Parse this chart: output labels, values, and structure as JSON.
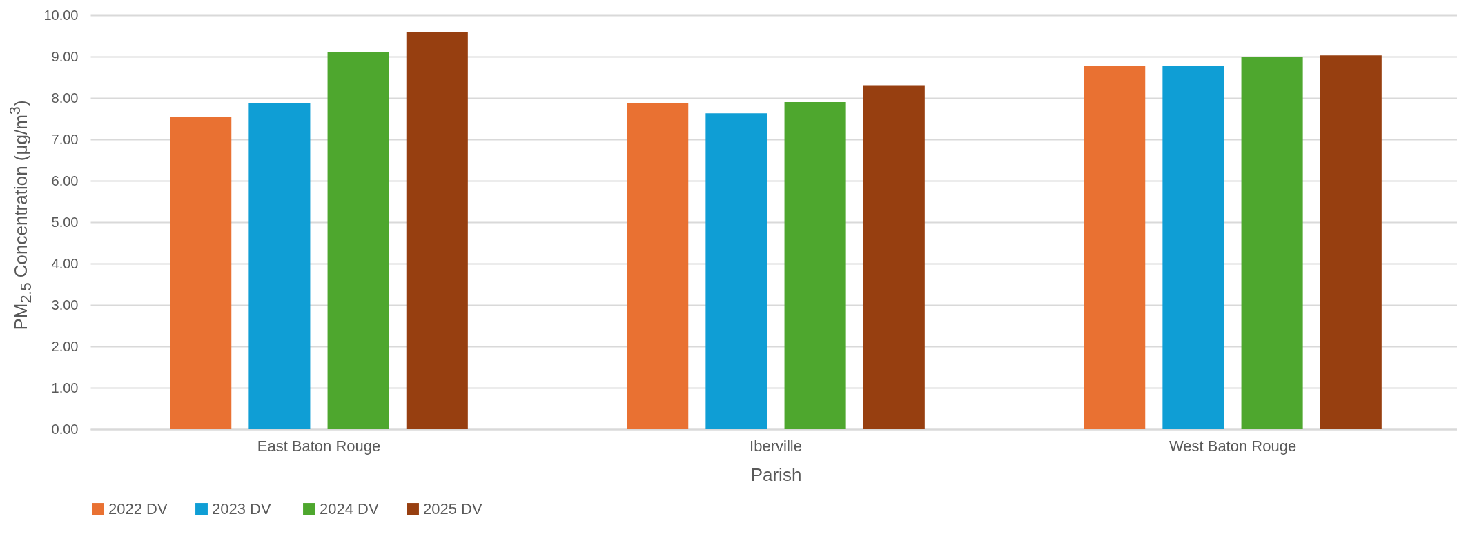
{
  "chart_data": {
    "type": "bar",
    "xlabel": "Parish",
    "ylabel": "PM$_{2.5}$ Concentration (μg/m$^{3}$)",
    "categories": [
      "East Baton Rouge",
      "Iberville",
      "West Baton Rouge"
    ],
    "series": [
      {
        "name": "2022 DV",
        "color": "#e97132",
        "values": [
          7.54,
          7.88,
          8.77
        ]
      },
      {
        "name": "2023  DV",
        "color": "#0f9ed5",
        "values": [
          7.87,
          7.63,
          8.77
        ]
      },
      {
        "name": "2024 DV",
        "color": "#4ea72e",
        "values": [
          9.1,
          7.9,
          9.0
        ]
      },
      {
        "name": "2025 DV",
        "color": "#973f10",
        "values": [
          9.6,
          8.31,
          9.03
        ]
      }
    ],
    "ylim": [
      0,
      10
    ],
    "yticks": [
      {
        "value": 0,
        "label": "0.00"
      },
      {
        "value": 1,
        "label": "1.00"
      },
      {
        "value": 2,
        "label": "2.00"
      },
      {
        "value": 3,
        "label": "3.00"
      },
      {
        "value": 4,
        "label": "4.00"
      },
      {
        "value": 5,
        "label": "5.00"
      },
      {
        "value": 6,
        "label": "6.00"
      },
      {
        "value": 7,
        "label": "7.00"
      },
      {
        "value": 8,
        "label": "8.00"
      },
      {
        "value": 9,
        "label": "9.00"
      },
      {
        "value": 10,
        "label": "10.00"
      }
    ],
    "grid": "y",
    "legend": "bottom"
  }
}
